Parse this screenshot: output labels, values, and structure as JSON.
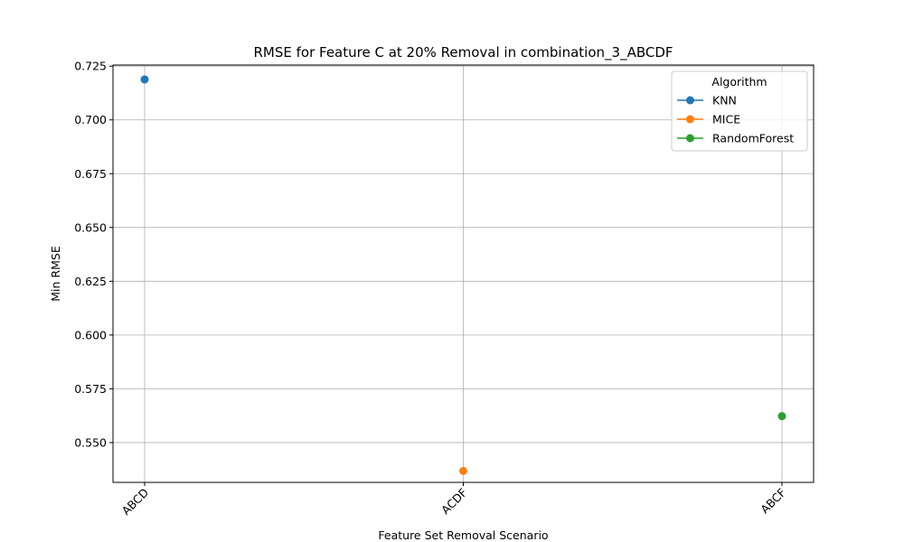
{
  "chart_data": {
    "type": "line",
    "title": "RMSE for Feature C at 20% Removal in combination_3_ABCDF",
    "xlabel": "Feature Set Removal Scenario",
    "ylabel": "Min RMSE",
    "categories": [
      "ABCD",
      "ACDF",
      "ABCF"
    ],
    "ylim": [
      0.5315,
      0.7255
    ],
    "yticks": [
      0.55,
      0.575,
      0.6,
      0.625,
      0.65,
      0.675,
      0.7,
      0.725
    ],
    "ytick_labels": [
      "0.550",
      "0.575",
      "0.600",
      "0.625",
      "0.650",
      "0.675",
      "0.700",
      "0.725"
    ],
    "grid": true,
    "x_tick_rotation": 45,
    "legend": {
      "title": "Algorithm",
      "placement": "top-right"
    },
    "series": [
      {
        "name": "KNN",
        "color": "#1f77b4",
        "points": [
          {
            "x": "ABCD",
            "y": 0.7188
          }
        ]
      },
      {
        "name": "MICE",
        "color": "#ff7f0e",
        "points": [
          {
            "x": "ACDF",
            "y": 0.5368
          }
        ]
      },
      {
        "name": "RandomForest",
        "color": "#2ca02c",
        "points": [
          {
            "x": "ABCF",
            "y": 0.5623
          }
        ]
      }
    ]
  }
}
